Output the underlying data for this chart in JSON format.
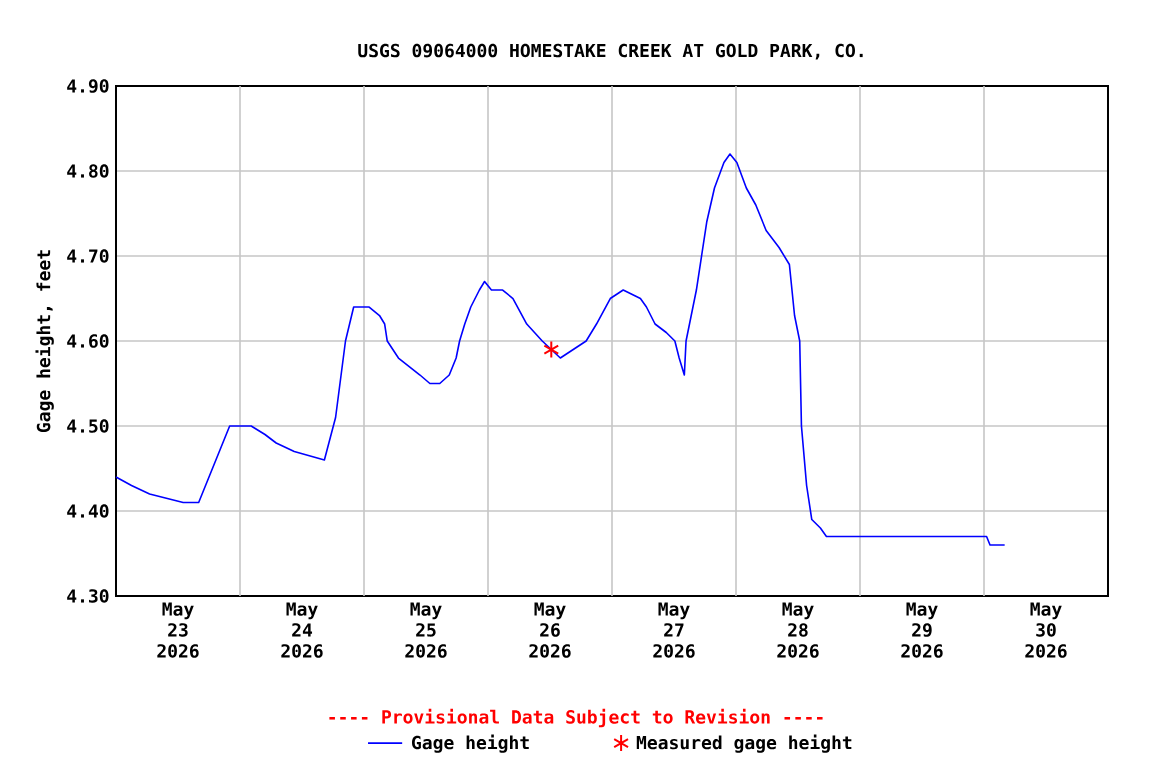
{
  "chart_data": {
    "type": "line",
    "title": "USGS 09064000 HOMESTAKE CREEK AT GOLD PARK, CO.",
    "ylabel": "Gage height, feet",
    "annotations": [
      "---- Provisional Data Subject to Revision ----"
    ],
    "xlim": [
      "2026-05-23",
      "2026-05-31"
    ],
    "xticks": [
      {
        "value": "2026-05-23T12:00",
        "label": "May 23 2026"
      },
      {
        "value": "2026-05-24T12:00",
        "label": "May 24 2026"
      },
      {
        "value": "2026-05-25T12:00",
        "label": "May 25 2026"
      },
      {
        "value": "2026-05-26T12:00",
        "label": "May 26 2026"
      },
      {
        "value": "2026-05-27T12:00",
        "label": "May 27 2026"
      },
      {
        "value": "2026-05-28T12:00",
        "label": "May 28 2026"
      },
      {
        "value": "2026-05-29T12:00",
        "label": "May 29 2026"
      },
      {
        "value": "2026-05-30T12:00",
        "label": "May 30 2026"
      },
      {
        "value": "2026-05-24",
        "label": null
      },
      {
        "value": "2026-05-25",
        "label": null
      },
      {
        "value": "2026-05-26",
        "label": null
      },
      {
        "value": "2026-05-27",
        "label": null
      },
      {
        "value": "2026-05-28",
        "label": null
      },
      {
        "value": "2026-05-29",
        "label": null
      },
      {
        "value": "2026-05-30",
        "label": null
      }
    ],
    "ylim": [
      4.3,
      4.9
    ],
    "yticks": [
      {
        "value": 4.3,
        "label": "4.30"
      },
      {
        "value": 4.4,
        "label": "4.40"
      },
      {
        "value": 4.5,
        "label": "4.50"
      },
      {
        "value": 4.6,
        "label": "4.60"
      },
      {
        "value": 4.7,
        "label": "4.70"
      },
      {
        "value": 4.8,
        "label": "4.80"
      },
      {
        "value": 4.9,
        "label": "4.90"
      }
    ],
    "grid": true,
    "legend": "bottom",
    "series": [
      {
        "name": "Gage height",
        "color": "#0000ff",
        "type": "line",
        "marker": "none",
        "x": [
          "2026-05-23T00:00",
          "2026-05-23T03:00",
          "2026-05-23T06:30",
          "2026-05-23T13:00",
          "2026-05-23T16:00",
          "2026-05-23T22:00",
          "2026-05-24T02:10",
          "2026-05-24T04:50",
          "2026-05-24T07:00",
          "2026-05-24T10:30",
          "2026-05-24T16:20",
          "2026-05-24T18:30",
          "2026-05-24T20:25",
          "2026-05-24T22:00",
          "2026-05-25T01:00",
          "2026-05-25T03:00",
          "2026-05-25T04:00",
          "2026-05-25T04:30",
          "2026-05-25T06:40",
          "2026-05-25T10:50",
          "2026-05-25T12:45",
          "2026-05-25T14:40",
          "2026-05-25T16:30",
          "2026-05-25T17:50",
          "2026-05-25T18:30",
          "2026-05-25T19:30",
          "2026-05-25T20:40",
          "2026-05-25T22:20",
          "2026-05-25T23:20",
          "2026-05-26T00:40",
          "2026-05-26T02:50",
          "2026-05-26T04:50",
          "2026-05-26T07:30",
          "2026-05-26T10:30",
          "2026-05-26T14:00",
          "2026-05-26T16:30",
          "2026-05-26T19:00",
          "2026-05-26T21:00",
          "2026-05-26T23:40",
          "2026-05-27T02:10",
          "2026-05-27T05:30",
          "2026-05-27T06:40",
          "2026-05-27T08:20",
          "2026-05-27T10:30",
          "2026-05-27T12:10",
          "2026-05-27T13:00",
          "2026-05-27T14:00",
          "2026-05-27T14:20",
          "2026-05-27T15:00",
          "2026-05-27T16:20",
          "2026-05-27T17:20",
          "2026-05-27T18:20",
          "2026-05-27T19:50",
          "2026-05-27T21:40",
          "2026-05-27T22:50",
          "2026-05-28T00:10",
          "2026-05-28T02:00",
          "2026-05-28T03:50",
          "2026-05-28T05:50",
          "2026-05-28T08:20",
          "2026-05-28T10:20",
          "2026-05-28T11:20",
          "2026-05-28T12:20",
          "2026-05-28T12:40",
          "2026-05-28T13:40",
          "2026-05-28T14:40",
          "2026-05-28T16:20",
          "2026-05-28T17:30",
          "2026-05-30T00:30",
          "2026-05-30T01:10",
          "2026-05-30T04:00"
        ],
        "values": [
          4.44,
          4.43,
          4.42,
          4.41,
          4.41,
          4.5,
          4.5,
          4.49,
          4.48,
          4.47,
          4.46,
          4.51,
          4.6,
          4.64,
          4.64,
          4.63,
          4.62,
          4.6,
          4.58,
          4.56,
          4.55,
          4.55,
          4.56,
          4.58,
          4.6,
          4.62,
          4.64,
          4.66,
          4.67,
          4.66,
          4.66,
          4.65,
          4.62,
          4.6,
          4.58,
          4.59,
          4.6,
          4.62,
          4.65,
          4.66,
          4.65,
          4.64,
          4.62,
          4.61,
          4.6,
          4.58,
          4.56,
          4.6,
          4.62,
          4.66,
          4.7,
          4.74,
          4.78,
          4.81,
          4.82,
          4.81,
          4.78,
          4.76,
          4.73,
          4.71,
          4.69,
          4.63,
          4.6,
          4.5,
          4.43,
          4.39,
          4.38,
          4.37,
          4.37,
          4.36,
          4.36
        ]
      },
      {
        "name": "Measured gage height",
        "color": "#ff0000",
        "type": "scatter",
        "marker": "cross",
        "x": [
          "2026-05-26T12:15"
        ],
        "values": [
          4.59
        ]
      }
    ]
  }
}
